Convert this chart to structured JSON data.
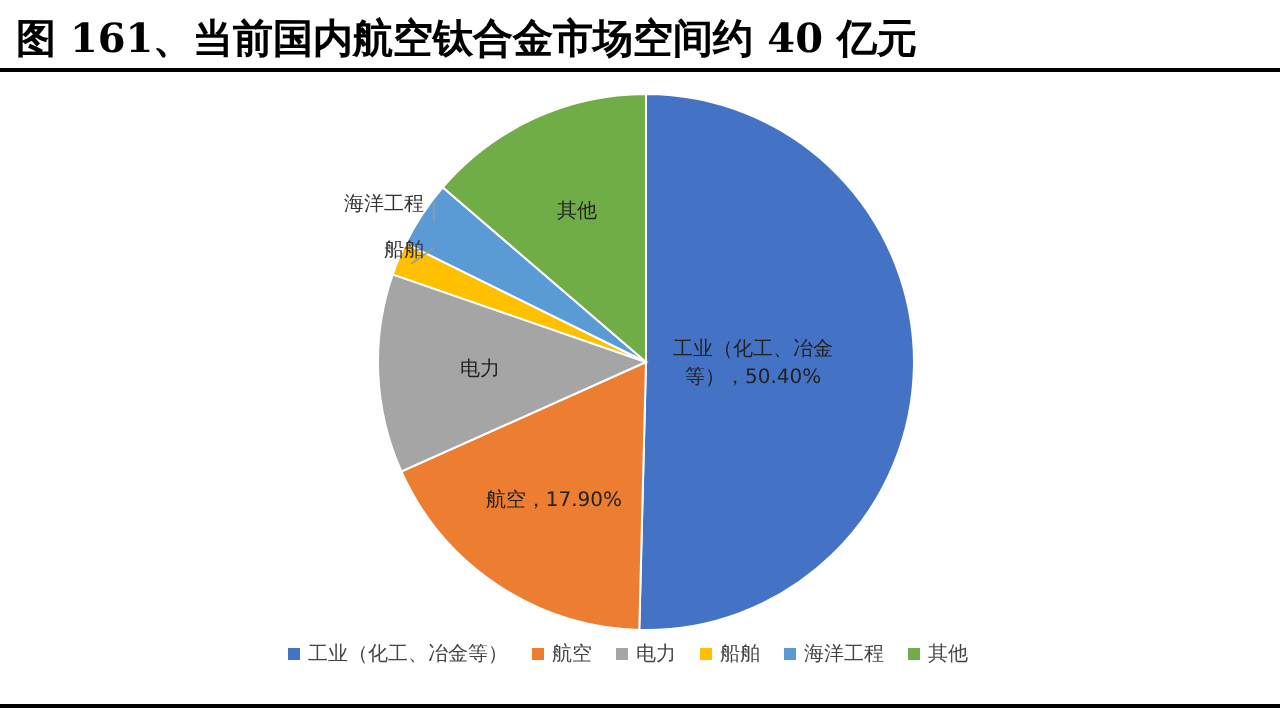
{
  "chart_data": {
    "type": "pie",
    "title": "图 161、当前国内航空钛合金市场空间约 40 亿元",
    "categories": [
      "工业（化工、冶金等）",
      "航空",
      "电力",
      "船舶",
      "海洋工程",
      "其他"
    ],
    "values": [
      50.4,
      17.9,
      12,
      2,
      4,
      13.7
    ],
    "value_labels": [
      "工业（化工、冶金等），50.40%",
      "航空，17.90%",
      null,
      null,
      null,
      null
    ],
    "colors": [
      "#4472c4",
      "#ed7d31",
      "#a5a5a5",
      "#ffc000",
      "#5b9bd5",
      "#70ad47"
    ],
    "legend": "bottom"
  }
}
